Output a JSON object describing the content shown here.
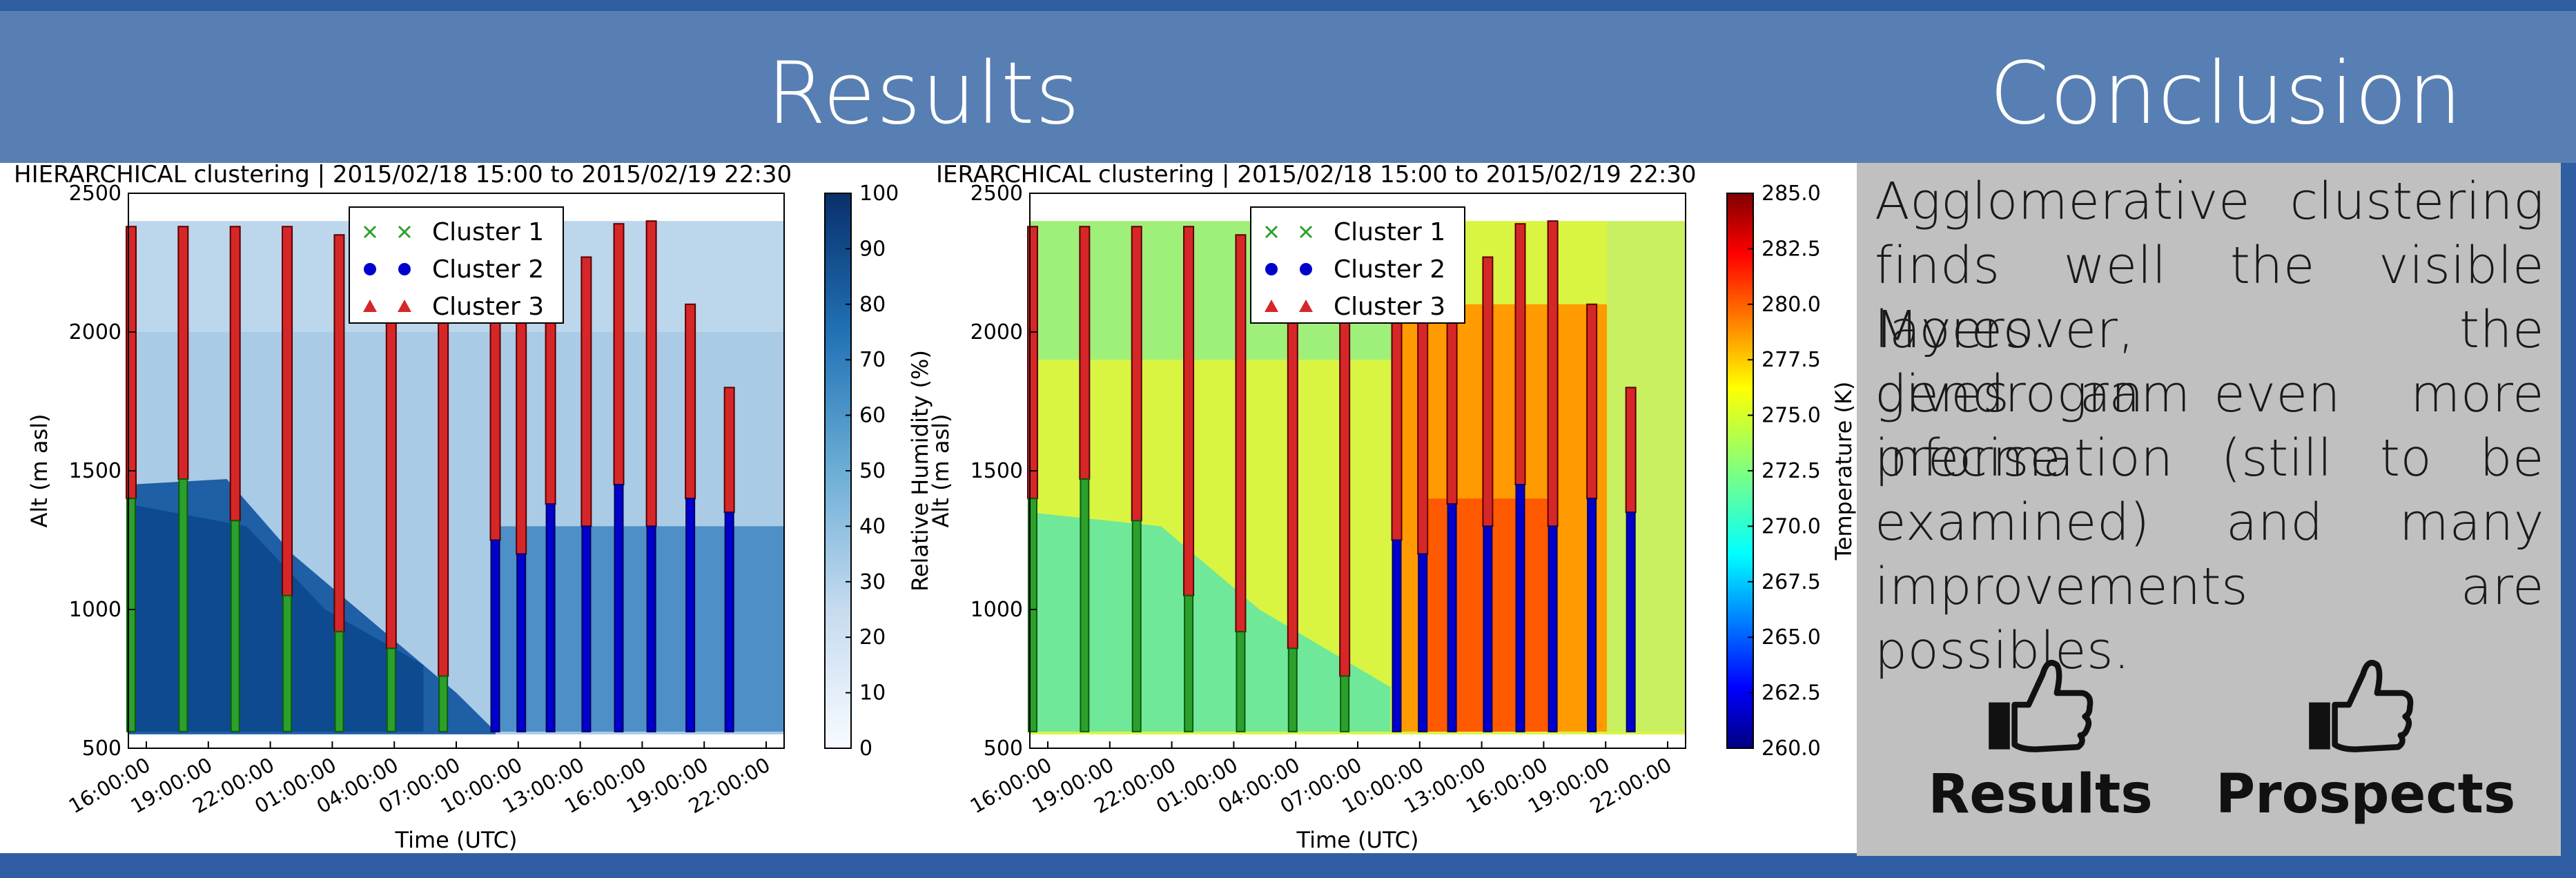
{
  "header": {
    "results_title": "Results",
    "conclusion_title": "Conclusion"
  },
  "colors": {
    "header_band": "#587fb3",
    "page_bg": "#2f5ea2",
    "conclusion_bg": "#c0c0c0",
    "cluster_1": "#2ca02c",
    "cluster_2": "#0000cc",
    "cluster_3": "#d62728"
  },
  "conclusion": {
    "lines": [
      "Agglomerative clustering",
      "finds well the visible layers.",
      "Moreover, the dendrogram",
      "gives an even more precise",
      "information (still to be",
      "examined) and many",
      "improvements are possibles."
    ],
    "thumb_icon": "thumbs-up-icon",
    "labels": [
      "Results",
      "Prospects"
    ]
  },
  "chart_data": [
    {
      "type": "heatmap",
      "title": "HIERARCHICAL clustering | 2015/02/18 15:00 to 2015/02/19 22:30",
      "xlabel": "Time (UTC)",
      "ylabel": "Alt (m asl)",
      "x_ticks": [
        "16:00:00",
        "19:00:00",
        "22:00:00",
        "01:00:00",
        "04:00:00",
        "07:00:00",
        "10:00:00",
        "13:00:00",
        "16:00:00",
        "19:00:00",
        "22:00:00"
      ],
      "y_ticks": [
        500,
        1000,
        1500,
        2000,
        2500
      ],
      "ylim": [
        500,
        2500
      ],
      "colorbar": {
        "label": "Relative Humidity (%)",
        "range": [
          0,
          100
        ],
        "ticks": [
          0,
          10,
          20,
          30,
          40,
          50,
          60,
          70,
          80,
          90,
          100
        ],
        "colormap": "Blues"
      },
      "legend": {
        "position": "top-center",
        "entries": [
          "Cluster 1",
          "Cluster 2",
          "Cluster 3"
        ]
      },
      "grid": false
    },
    {
      "type": "heatmap",
      "title": "IERARCHICAL clustering | 2015/02/18 15:00 to 2015/02/19 22:30",
      "xlabel": "Time (UTC)",
      "ylabel": "Alt (m asl)",
      "x_ticks": [
        "16:00:00",
        "19:00:00",
        "22:00:00",
        "01:00:00",
        "04:00:00",
        "07:00:00",
        "10:00:00",
        "13:00:00",
        "16:00:00",
        "19:00:00",
        "22:00:00"
      ],
      "y_ticks": [
        500,
        1000,
        1500,
        2000,
        2500
      ],
      "ylim": [
        500,
        2500
      ],
      "colorbar": {
        "label": "Temperature (K)",
        "range": [
          260.0,
          285.0
        ],
        "ticks": [
          "260.0",
          "262.5",
          "265.0",
          "267.5",
          "270.0",
          "272.5",
          "275.0",
          "277.5",
          "280.0",
          "282.5",
          "285.0"
        ],
        "colormap": "Jet"
      },
      "legend": {
        "position": "top-center",
        "entries": [
          "Cluster 1",
          "Cluster 2",
          "Cluster 3"
        ]
      },
      "grid": false
    }
  ]
}
